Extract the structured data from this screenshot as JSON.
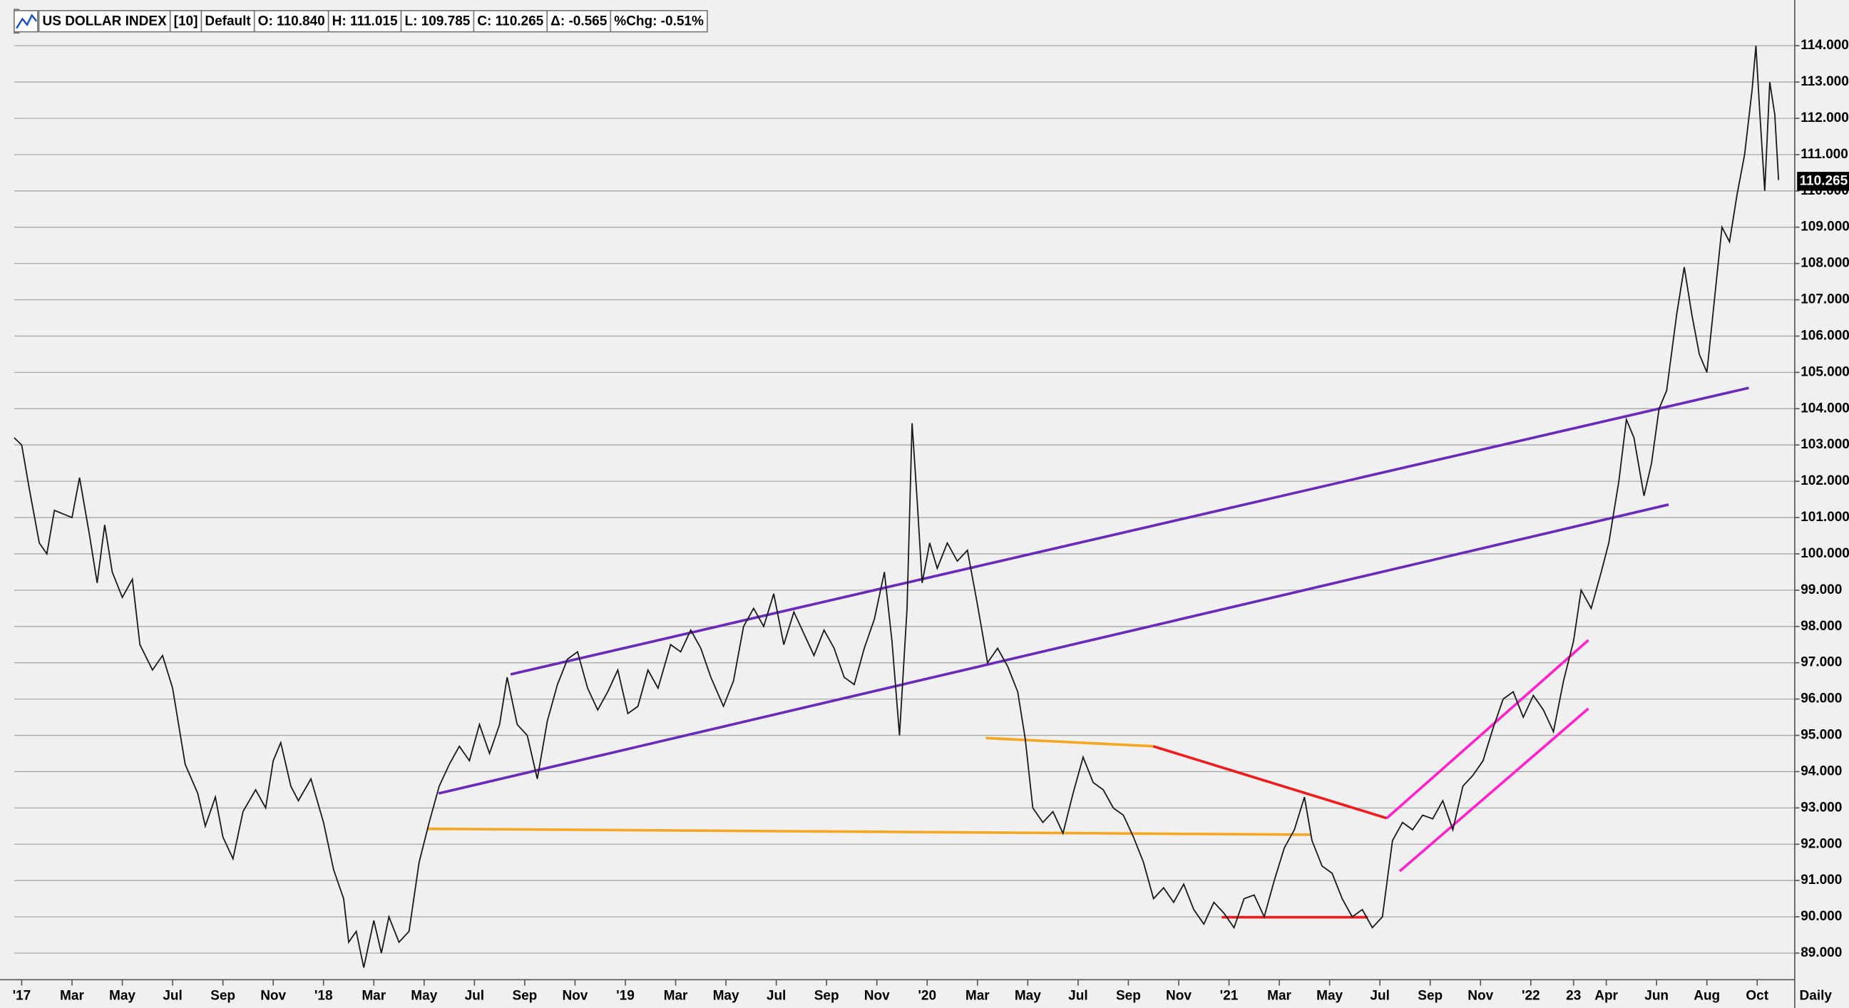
{
  "header": {
    "items": [
      "US DOLLAR INDEX",
      "[10]",
      "Default",
      "O: 110.840",
      "H: 111.015",
      "L: 109.785",
      "C: 110.265",
      "Δ: -0.565",
      "%Chg: -0.51%"
    ]
  },
  "chart_data": {
    "type": "line",
    "x": [
      -0.3,
      0,
      0.3,
      0.7,
      1,
      1.3,
      2,
      2.3,
      2.7,
      3,
      3.3,
      3.6,
      4,
      4.4,
      4.7,
      5.2,
      5.6,
      6,
      6.5,
      7,
      7.3,
      7.7,
      8,
      8.4,
      8.8,
      9.3,
      9.7,
      10,
      10.3,
      10.7,
      11,
      11.5,
      12,
      12.4,
      12.8,
      13,
      13.3,
      13.6,
      14,
      14.3,
      14.6,
      15,
      15.4,
      15.8,
      16.2,
      16.6,
      17,
      17.4,
      17.8,
      18.2,
      18.6,
      19,
      19.3,
      19.7,
      20.1,
      20.5,
      20.9,
      21.3,
      21.7,
      22.1,
      22.5,
      22.9,
      23.3,
      23.7,
      24.1,
      24.5,
      24.9,
      25.3,
      25.8,
      26.2,
      26.6,
      27,
      27.4,
      27.9,
      28.3,
      28.7,
      29.1,
      29.5,
      29.9,
      30.3,
      30.7,
      31.1,
      31.5,
      31.9,
      32.3,
      32.7,
      33.1,
      33.5,
      33.9,
      34.3,
      34.6,
      34.9,
      35.2,
      35.4,
      35.6,
      35.8,
      36.1,
      36.4,
      36.8,
      37.2,
      37.6,
      38,
      38.4,
      38.8,
      39.2,
      39.6,
      39.9,
      40.2,
      40.6,
      41,
      41.4,
      41.8,
      42.2,
      42.6,
      43,
      43.4,
      43.8,
      44.2,
      44.6,
      45,
      45.4,
      45.8,
      46.2,
      46.6,
      47,
      47.4,
      47.8,
      48.2,
      48.6,
      49,
      49.4,
      49.8,
      50.2,
      50.6,
      51,
      51.3,
      51.7,
      52.1,
      52.5,
      52.9,
      53.3,
      53.7,
      54.1,
      54.5,
      54.9,
      55.3,
      55.7,
      56.1,
      56.5,
      56.9,
      57.3,
      57.7,
      58.1,
      58.5,
      58.9,
      59.3,
      59.7,
      60.1,
      60.5,
      60.9,
      61.3,
      61.7,
      62,
      62.4,
      62.8,
      63.1,
      63.5,
      63.8,
      64.1,
      64.5,
      64.8,
      65.1,
      65.4,
      65.8,
      66.1,
      66.4,
      66.7,
      67,
      67.3,
      67.6,
      67.9,
      68.2,
      68.5,
      68.8,
      68.95,
      69.1,
      69.3,
      69.5,
      69.7,
      69.85
    ],
    "series": [
      {
        "name": "US DOLLAR INDEX",
        "color": "#1a1a1a",
        "values": [
          103.2,
          103.0,
          101.8,
          100.3,
          100.0,
          101.2,
          101.0,
          102.1,
          100.5,
          99.2,
          100.8,
          99.5,
          98.8,
          99.3,
          97.5,
          96.8,
          97.2,
          96.3,
          94.2,
          93.4,
          92.5,
          93.3,
          92.2,
          91.6,
          92.9,
          93.5,
          93.0,
          94.3,
          94.8,
          93.6,
          93.2,
          93.8,
          92.6,
          91.3,
          90.5,
          89.3,
          89.6,
          88.6,
          89.9,
          89.0,
          90.0,
          89.3,
          89.6,
          91.5,
          92.6,
          93.6,
          94.2,
          94.7,
          94.3,
          95.3,
          94.5,
          95.3,
          96.6,
          95.3,
          95.0,
          93.8,
          95.4,
          96.4,
          97.1,
          97.3,
          96.3,
          95.7,
          96.2,
          96.8,
          95.6,
          95.8,
          96.8,
          96.3,
          97.5,
          97.3,
          97.9,
          97.4,
          96.6,
          95.8,
          96.5,
          98.0,
          98.5,
          98.0,
          98.9,
          97.5,
          98.4,
          97.8,
          97.2,
          97.9,
          97.4,
          96.6,
          96.4,
          97.4,
          98.2,
          99.5,
          97.6,
          95.0,
          98.5,
          103.6,
          101.5,
          99.2,
          100.3,
          99.6,
          100.3,
          99.8,
          100.1,
          98.6,
          97.0,
          97.4,
          96.9,
          96.2,
          94.9,
          93.0,
          92.6,
          92.9,
          92.3,
          93.4,
          94.4,
          93.7,
          93.5,
          93.0,
          92.8,
          92.2,
          91.5,
          90.5,
          90.8,
          90.4,
          90.9,
          90.2,
          89.8,
          90.4,
          90.1,
          89.7,
          90.5,
          90.6,
          90.0,
          91.0,
          91.9,
          92.4,
          93.3,
          92.1,
          91.4,
          91.2,
          90.5,
          90.0,
          90.2,
          89.7,
          90.0,
          92.1,
          92.6,
          92.4,
          92.8,
          92.7,
          93.2,
          92.4,
          93.6,
          93.9,
          94.3,
          95.2,
          96.0,
          96.2,
          95.5,
          96.1,
          95.7,
          95.1,
          96.5,
          97.6,
          99.0,
          98.5,
          99.5,
          100.3,
          102.0,
          103.7,
          103.2,
          101.6,
          102.5,
          104.0,
          104.5,
          106.6,
          107.9,
          106.6,
          105.5,
          105.0,
          107.0,
          109.0,
          108.6,
          109.9,
          111.0,
          112.8,
          114.0,
          112.2,
          110.0,
          113.0,
          112.1,
          110.3
        ]
      }
    ],
    "xlim": [
      -0.3,
      70.4
    ],
    "xticks": [
      {
        "value": 0,
        "label": "'17"
      },
      {
        "value": 2,
        "label": "Mar"
      },
      {
        "value": 4,
        "label": "May"
      },
      {
        "value": 6,
        "label": "Jul"
      },
      {
        "value": 8,
        "label": "Sep"
      },
      {
        "value": 10,
        "label": "Nov"
      },
      {
        "value": 12,
        "label": "'18"
      },
      {
        "value": 14,
        "label": "Mar"
      },
      {
        "value": 16,
        "label": "May"
      },
      {
        "value": 18,
        "label": "Jul"
      },
      {
        "value": 20,
        "label": "Sep"
      },
      {
        "value": 22,
        "label": "Nov"
      },
      {
        "value": 24,
        "label": "'19"
      },
      {
        "value": 26,
        "label": "Mar"
      },
      {
        "value": 28,
        "label": "May"
      },
      {
        "value": 30,
        "label": "Jul"
      },
      {
        "value": 32,
        "label": "Sep"
      },
      {
        "value": 34,
        "label": "Nov"
      },
      {
        "value": 36,
        "label": "'20"
      },
      {
        "value": 38,
        "label": "Mar"
      },
      {
        "value": 40,
        "label": "May"
      },
      {
        "value": 42,
        "label": "Jul"
      },
      {
        "value": 44,
        "label": "Sep"
      },
      {
        "value": 46,
        "label": "Nov"
      },
      {
        "value": 48,
        "label": "'21"
      },
      {
        "value": 50,
        "label": "Mar"
      },
      {
        "value": 52,
        "label": "May"
      },
      {
        "value": 54,
        "label": "Jul"
      },
      {
        "value": 56,
        "label": "Sep"
      },
      {
        "value": 58,
        "label": "Nov"
      },
      {
        "value": 60,
        "label": "'22"
      },
      {
        "value": 61.7,
        "label": "23"
      },
      {
        "value": 63,
        "label": "Apr"
      },
      {
        "value": 65,
        "label": "Jun"
      },
      {
        "value": 67,
        "label": "Aug"
      },
      {
        "value": 69,
        "label": "Oct"
      }
    ],
    "ylim": [
      88.3,
      115
    ],
    "yticks": [
      {
        "value": 89,
        "label": "89.000"
      },
      {
        "value": 90,
        "label": "90.000"
      },
      {
        "value": 91,
        "label": "91.000"
      },
      {
        "value": 92,
        "label": "92.000"
      },
      {
        "value": 93,
        "label": "93.000"
      },
      {
        "value": 94,
        "label": "94.000"
      },
      {
        "value": 95,
        "label": "95.000"
      },
      {
        "value": 96,
        "label": "96.000"
      },
      {
        "value": 97,
        "label": "97.000"
      },
      {
        "value": 98,
        "label": "98.000"
      },
      {
        "value": 99,
        "label": "99.000"
      },
      {
        "value": 100,
        "label": "100.000"
      },
      {
        "value": 101,
        "label": "101.000"
      },
      {
        "value": 102,
        "label": "102.000"
      },
      {
        "value": 103,
        "label": "103.000"
      },
      {
        "value": 104,
        "label": "104.000"
      },
      {
        "value": 105,
        "label": "105.000"
      },
      {
        "value": 106,
        "label": "106.000"
      },
      {
        "value": 107,
        "label": "107.000"
      },
      {
        "value": 108,
        "label": "108.000"
      },
      {
        "value": 109,
        "label": "109.000"
      },
      {
        "value": 110,
        "label": "110.000"
      },
      {
        "value": 111,
        "label": "111.000"
      },
      {
        "value": 112,
        "label": "112.000"
      },
      {
        "value": 113,
        "label": "113.000"
      },
      {
        "value": 114,
        "label": "114.000"
      }
    ],
    "grid": true,
    "last_price": 110.265,
    "x_period_label": "Daily"
  }
}
